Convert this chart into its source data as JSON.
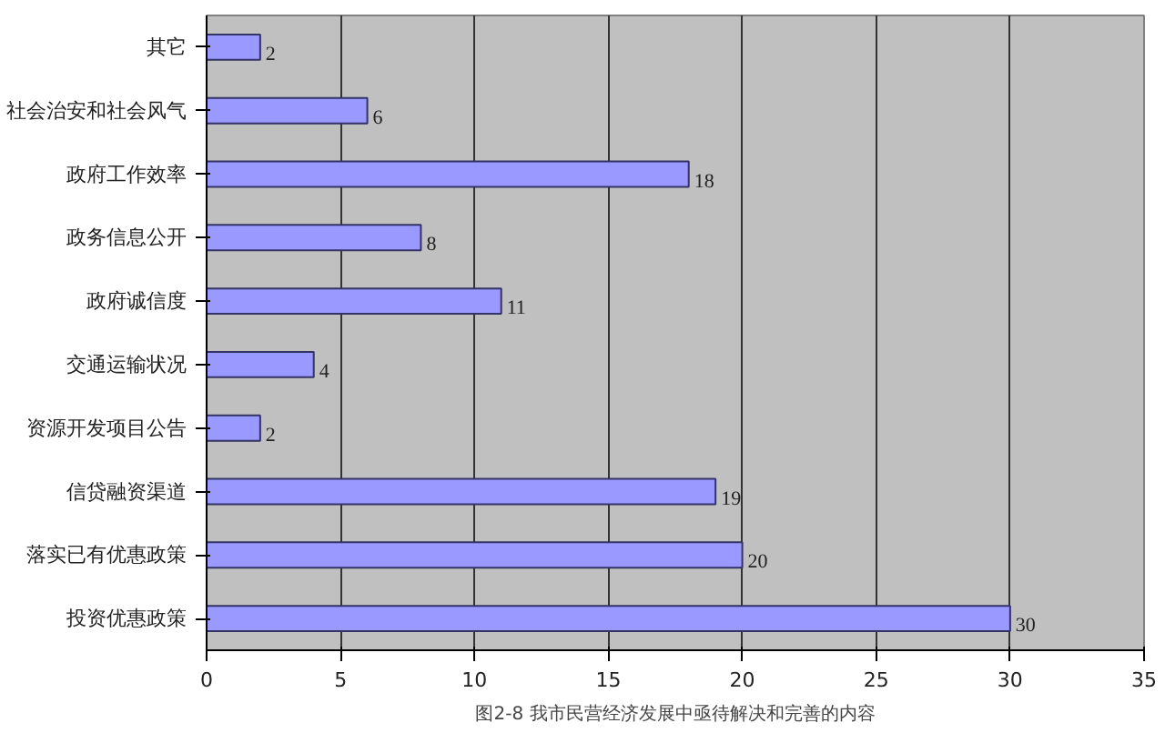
{
  "chart_data": {
    "type": "bar",
    "orientation": "horizontal",
    "title": "图2-8 我市民营经济发展中亟待解决和完善的内容",
    "categories": [
      "其它",
      "社会治安和社会风气",
      "政府工作效率",
      "政务信息公开",
      "政府诚信度",
      "交通运输状况",
      "资源开发项目公告",
      "信贷融资渠道",
      "落实已有优惠政策",
      "投资优惠政策"
    ],
    "values": [
      2,
      6,
      18,
      8,
      11,
      4,
      2,
      19,
      20,
      30
    ],
    "color": "#9999ff",
    "xlim": [
      0,
      35
    ],
    "xticks": [
      0,
      5,
      10,
      15,
      20,
      25,
      30,
      35
    ],
    "grid": "x",
    "data_labels": true
  }
}
